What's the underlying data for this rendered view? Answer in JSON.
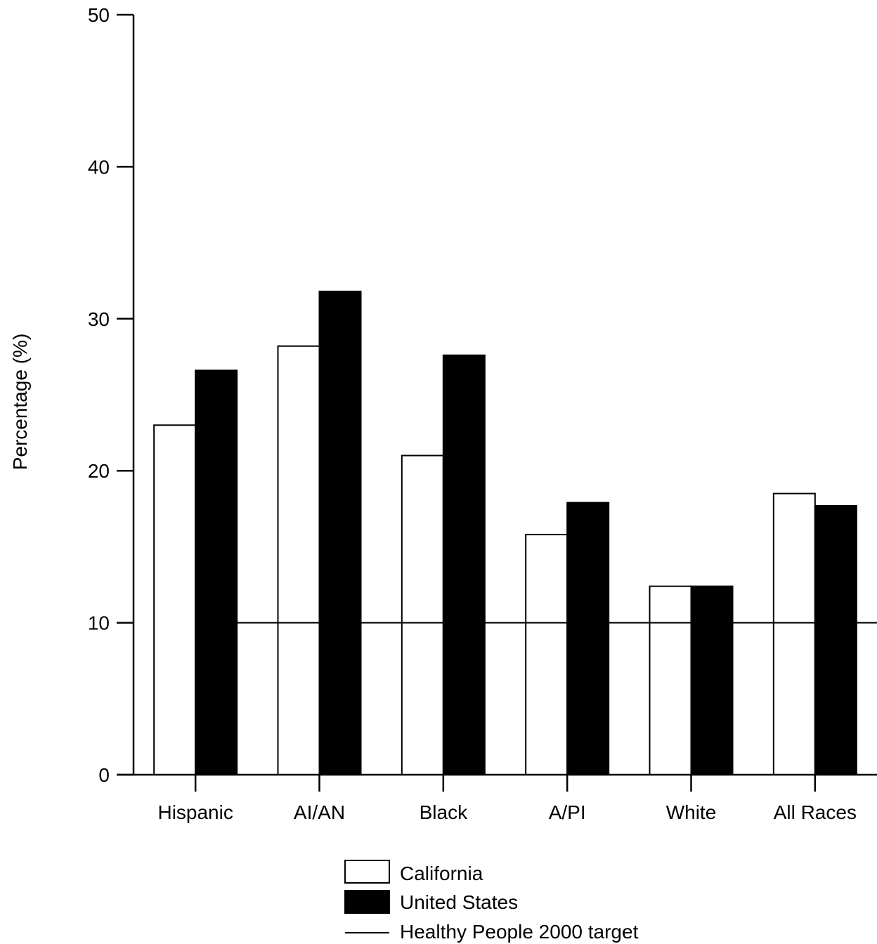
{
  "chart_data": {
    "type": "bar",
    "title": "",
    "xlabel": "",
    "ylabel": "Percentage (%)",
    "ylim": [
      0,
      50
    ],
    "yticks": [
      0,
      10,
      20,
      30,
      40,
      50
    ],
    "grid": false,
    "legend_position": "bottom-center",
    "categories": [
      "Hispanic",
      "AI/AN",
      "Black",
      "A/PI",
      "White",
      "All Races"
    ],
    "series": [
      {
        "name": "California",
        "fill": "#ffffff",
        "values": [
          23.0,
          28.2,
          21.0,
          15.8,
          12.4,
          18.5
        ]
      },
      {
        "name": "United States",
        "fill": "#000000",
        "values": [
          26.6,
          31.8,
          27.6,
          17.9,
          12.4,
          17.7
        ]
      }
    ],
    "reference_line": {
      "name": "Healthy People 2000 target",
      "value": 10,
      "color": "#000000"
    }
  }
}
